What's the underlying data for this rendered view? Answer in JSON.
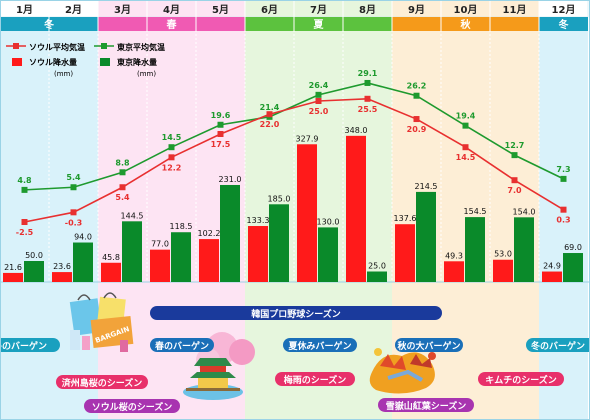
{
  "months": [
    "1月",
    "2月",
    "3月",
    "4月",
    "5月",
    "6月",
    "7月",
    "8月",
    "9月",
    "10月",
    "11月",
    "12月"
  ],
  "seasons": [
    {
      "label": "冬",
      "from": 0,
      "to": 2,
      "color": "#1aa0bf",
      "bg": "#d9f2fa",
      "monthBg": "#ffffff"
    },
    {
      "label": "春",
      "from": 2,
      "to": 5,
      "color": "#f05ab3",
      "bg": "#fde4f3",
      "monthBg": "#fde4f3"
    },
    {
      "label": "夏",
      "from": 5,
      "to": 8,
      "color": "#5cc23e",
      "bg": "#e6f6dd",
      "monthBg": "#e6f6dd"
    },
    {
      "label": "秋",
      "from": 8,
      "to": 11,
      "color": "#f59a1a",
      "bg": "#fdeed6",
      "monthBg": "#fdeed6"
    },
    {
      "label": "冬",
      "from": 11,
      "to": 12,
      "color": "#1aa0bf",
      "bg": "#d9f2fa",
      "monthBg": "#ffffff"
    }
  ],
  "legend": {
    "seoul_temp": "ソウル平均気温",
    "tokyo_temp": "東京平均気温",
    "seoul_rain": "ソウル降水量",
    "tokyo_rain": "東京降水量",
    "unit": "(mm)"
  },
  "colors": {
    "seoul": "#ff1a1a",
    "tokyo": "#0a8a2a",
    "seoul_line": "#e83030",
    "tokyo_line": "#1e9a2e"
  },
  "chart_data": {
    "type": "bar",
    "categories": [
      "1月",
      "2月",
      "3月",
      "4月",
      "5月",
      "6月",
      "7月",
      "8月",
      "9月",
      "10月",
      "11月",
      "12月"
    ],
    "series": [
      {
        "name": "ソウル降水量",
        "unit": "mm",
        "values": [
          21.6,
          23.6,
          45.8,
          77.0,
          102.2,
          133.3,
          327.9,
          348.0,
          137.6,
          49.3,
          53.0,
          24.9
        ]
      },
      {
        "name": "東京降水量",
        "unit": "mm",
        "values": [
          50.0,
          94.0,
          144.5,
          118.5,
          231.0,
          185.0,
          130.0,
          25.0,
          214.5,
          154.5,
          154.0,
          69.0
        ]
      },
      {
        "name": "ソウル平均気温",
        "type": "line",
        "values": [
          -2.5,
          -0.3,
          5.4,
          12.2,
          17.5,
          22.0,
          25.0,
          25.5,
          20.9,
          14.5,
          7.0,
          0.3
        ]
      },
      {
        "name": "東京平均気温",
        "type": "line",
        "values": [
          4.8,
          5.4,
          8.8,
          14.5,
          19.6,
          21.4,
          26.4,
          29.1,
          26.2,
          19.4,
          12.7,
          7.3
        ]
      }
    ]
  },
  "events": {
    "baseball": "韓国プロ野球シーズン",
    "winter_bargain1": "冬のバーゲン",
    "jeju_cherry": "済州島桜のシーズン",
    "seoul_cherry": "ソウル桜のシーズン",
    "spring_bargain": "春のバーゲン",
    "summer_bargain": "夏休みバーゲン",
    "rainy": "梅雨のシーズン",
    "autumn_bargain": "秋の大バーゲン",
    "autumn_leaves": "雪嶽山紅葉シーズン",
    "kimchi": "キムチのシーズン",
    "winter_bargain2": "冬のバーゲン",
    "bargain_tag": "BARGAIN"
  }
}
